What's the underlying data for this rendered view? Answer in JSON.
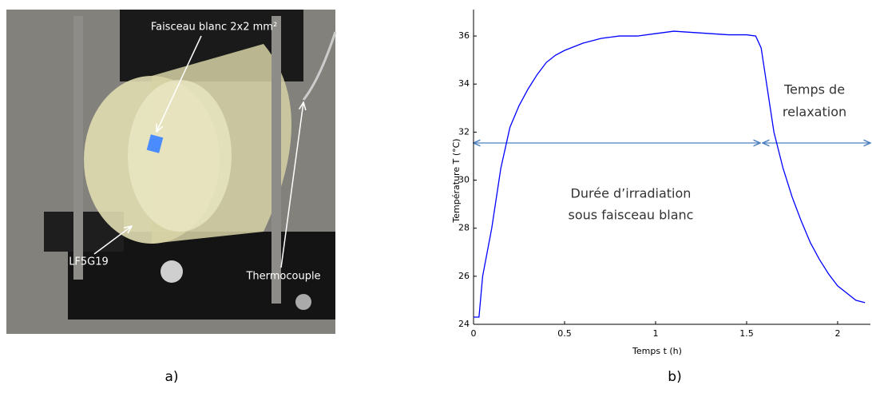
{
  "photo": {
    "labels": [
      "Faisceau blanc 2x2 mm²",
      "LF5G19",
      "Thermocouple"
    ],
    "caption": "a)"
  },
  "chart_data": {
    "type": "line",
    "caption": "b)",
    "xlabel": "Temps t (h)",
    "ylabel": "Température T (°C)",
    "annotations": [
      [
        "Durée d’irradiation",
        "sous faisceau blanc"
      ],
      [
        "Temps de",
        "relaxation"
      ]
    ],
    "color": "#0000ff",
    "x": [
      0,
      0.03,
      0.05,
      0.1,
      0.15,
      0.2,
      0.25,
      0.3,
      0.35,
      0.4,
      0.45,
      0.5,
      0.6,
      0.7,
      0.8,
      0.9,
      1.0,
      1.1,
      1.2,
      1.3,
      1.4,
      1.5,
      1.55,
      1.58,
      1.6,
      1.62,
      1.65,
      1.7,
      1.75,
      1.8,
      1.85,
      1.9,
      1.95,
      2.0,
      2.05,
      2.1,
      2.15
    ],
    "values": [
      24.3,
      24.3,
      26.0,
      28.0,
      30.5,
      32.2,
      33.1,
      33.8,
      34.4,
      34.9,
      35.2,
      35.4,
      35.7,
      35.9,
      36.0,
      36.0,
      36.1,
      36.2,
      36.15,
      36.1,
      36.05,
      36.05,
      36.0,
      35.5,
      34.5,
      33.5,
      32.0,
      30.5,
      29.3,
      28.3,
      27.4,
      26.7,
      26.1,
      25.6,
      25.3,
      25.0,
      24.9
    ],
    "xlim": [
      0,
      2.18
    ],
    "ylim": [
      24,
      37.1
    ],
    "xticks": [
      0,
      0.5,
      1,
      1.5,
      2
    ],
    "yticks": [
      24,
      26,
      28,
      30,
      32,
      34,
      36
    ]
  }
}
